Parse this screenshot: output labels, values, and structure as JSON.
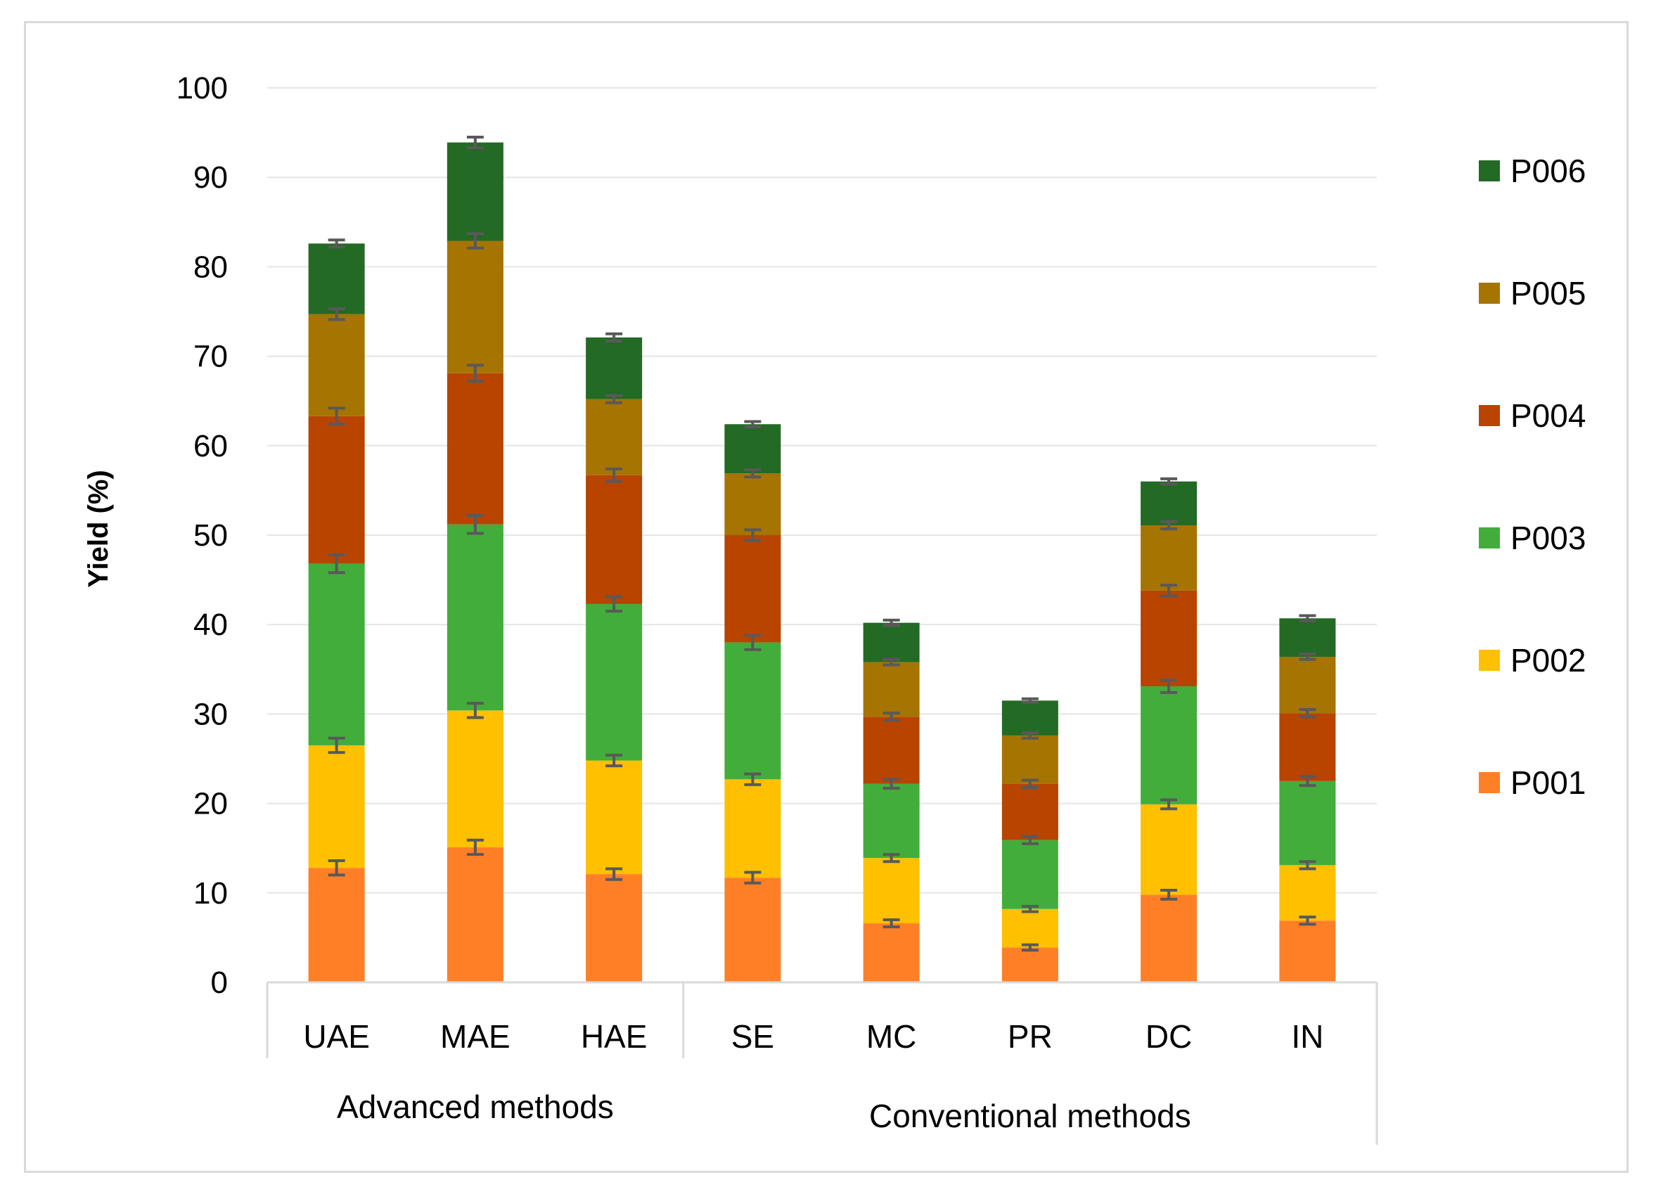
{
  "chart_data": {
    "type": "bar",
    "stacked": true,
    "title": "",
    "xlabel": "",
    "ylabel": "Yield (%)",
    "ylim": [
      0,
      100
    ],
    "yticks": [
      0,
      10,
      20,
      30,
      40,
      50,
      60,
      70,
      80,
      90,
      100
    ],
    "grid": true,
    "legend_position": "right",
    "categories": [
      "UAE",
      "MAE",
      "HAE",
      "SE",
      "MC",
      "PR",
      "DC",
      "IN"
    ],
    "groups": [
      {
        "label": "Advanced methods",
        "categories": [
          "UAE",
          "MAE",
          "HAE"
        ]
      },
      {
        "label": "Conventional methods",
        "categories": [
          "SE",
          "MC",
          "PR",
          "DC",
          "IN"
        ]
      }
    ],
    "series": [
      {
        "name": "P001",
        "color": "#ff7f27",
        "values": [
          12.8,
          15.1,
          12.1,
          11.7,
          6.6,
          3.9,
          9.8,
          6.9
        ],
        "errors": [
          0.8,
          0.8,
          0.6,
          0.6,
          0.4,
          0.3,
          0.5,
          0.4
        ]
      },
      {
        "name": "P002",
        "color": "#ffc000",
        "values": [
          13.7,
          15.3,
          12.7,
          11.0,
          7.3,
          4.3,
          10.1,
          6.2
        ],
        "errors": [
          0.8,
          0.8,
          0.6,
          0.6,
          0.4,
          0.3,
          0.5,
          0.4
        ]
      },
      {
        "name": "P003",
        "color": "#43ad3b",
        "values": [
          20.3,
          20.8,
          17.5,
          15.3,
          8.3,
          7.7,
          13.2,
          9.4
        ],
        "errors": [
          1.0,
          1.0,
          0.8,
          0.8,
          0.5,
          0.4,
          0.7,
          0.5
        ]
      },
      {
        "name": "P004",
        "color": "#b84400",
        "values": [
          16.5,
          16.9,
          14.4,
          12.0,
          7.5,
          6.3,
          10.7,
          7.6
        ],
        "errors": [
          0.9,
          0.9,
          0.7,
          0.6,
          0.4,
          0.4,
          0.6,
          0.4
        ]
      },
      {
        "name": "P005",
        "color": "#a67400",
        "values": [
          11.4,
          14.8,
          8.5,
          6.9,
          6.1,
          5.4,
          7.3,
          6.3
        ],
        "errors": [
          0.6,
          0.8,
          0.4,
          0.4,
          0.3,
          0.3,
          0.4,
          0.3
        ]
      },
      {
        "name": "P006",
        "color": "#236a24",
        "values": [
          7.9,
          11.0,
          6.9,
          5.5,
          4.4,
          3.9,
          4.9,
          4.3
        ],
        "errors": [
          0.4,
          0.6,
          0.4,
          0.3,
          0.3,
          0.2,
          0.3,
          0.3
        ]
      }
    ]
  },
  "colors": {
    "grid": "#e5e5e5",
    "axis": "#d9d9d9",
    "error_bar": "#595959",
    "text": "#000000"
  }
}
